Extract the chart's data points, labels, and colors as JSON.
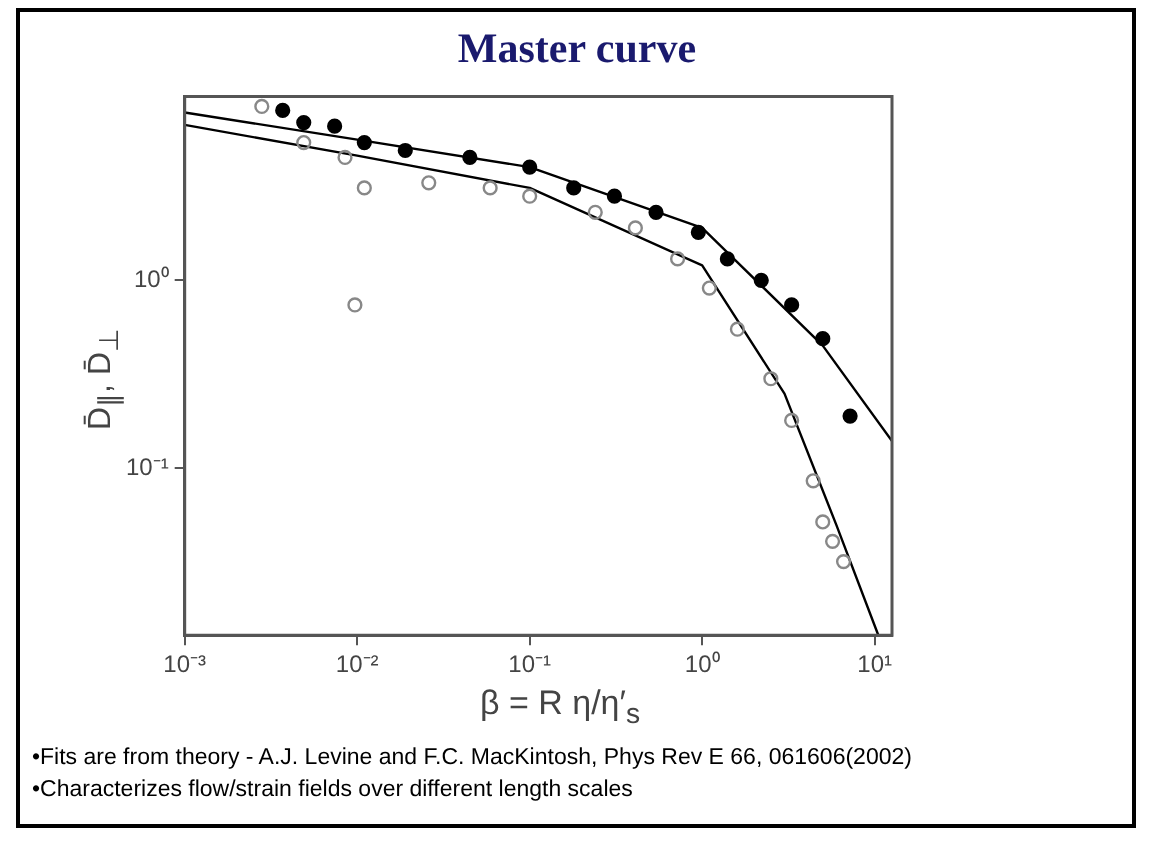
{
  "chart_data": {
    "type": "scatter",
    "title": "Master curve",
    "xlabel": "β = R η/η′$_{s}$",
    "ylabel": "D̄$_{∥}$, D̄$_{⊥}$",
    "log": "xy",
    "grid": false,
    "legend": false,
    "marker": "circle",
    "xlim": [
      0.001,
      12.6
    ],
    "ylim": [
      0.013,
      9.5
    ],
    "xticks": [
      {
        "value": 0.001,
        "label": "10⁻³"
      },
      {
        "value": 0.01,
        "label": "10⁻²"
      },
      {
        "value": 0.1,
        "label": "10⁻¹"
      },
      {
        "value": 1,
        "label": "10⁰"
      },
      {
        "value": 10,
        "label": "10¹"
      }
    ],
    "yticks": [
      {
        "value": 0.1,
        "label": "10⁻¹"
      },
      {
        "value": 1,
        "label": "10⁰"
      }
    ],
    "series": [
      {
        "color": "#000000",
        "x": [
          0.0037,
          0.0049,
          0.0074,
          0.011,
          0.019,
          0.045,
          0.1,
          0.18,
          0.31,
          0.54,
          0.95,
          1.4,
          2.2,
          3.3,
          5.0,
          7.2
        ],
        "values": [
          8.0,
          6.9,
          6.6,
          5.4,
          4.9,
          4.5,
          4.0,
          3.1,
          2.8,
          2.3,
          1.8,
          1.3,
          1.0,
          0.74,
          0.49,
          0.19
        ]
      },
      {
        "color": "#888888",
        "x": [
          0.0028,
          0.0049,
          0.0085,
          0.0097,
          0.011,
          0.026,
          0.059,
          0.1,
          0.24,
          0.41,
          0.72,
          1.1,
          1.6,
          2.5,
          3.3,
          4.4,
          5.0,
          5.7,
          6.6
        ],
        "values": [
          8.4,
          5.4,
          4.5,
          0.74,
          3.1,
          3.3,
          3.1,
          2.8,
          2.3,
          1.9,
          1.3,
          0.91,
          0.55,
          0.3,
          0.18,
          0.086,
          0.052,
          0.041,
          0.032
        ]
      },
      {
        "type": "line",
        "color": "#000000",
        "marker": "none",
        "line_style": "solid",
        "x": [
          0.001,
          0.01,
          0.1,
          1,
          5,
          12.6
        ],
        "values": [
          7.8,
          5.6,
          4.0,
          1.9,
          0.45,
          0.14
        ]
      },
      {
        "type": "line",
        "color": "#000000",
        "marker": "none",
        "line_style": "solid",
        "x": [
          0.001,
          0.01,
          0.1,
          1,
          3,
          6,
          10.5
        ],
        "values": [
          6.7,
          4.6,
          3.1,
          1.2,
          0.25,
          0.05,
          0.013
        ]
      }
    ],
    "annotations": [
      "•Fits are from theory  - A.J. Levine and F.C. MacKintosh, Phys Rev E 66, 061606(2002)",
      "•Characterizes flow/strain fields over different length scales"
    ]
  }
}
